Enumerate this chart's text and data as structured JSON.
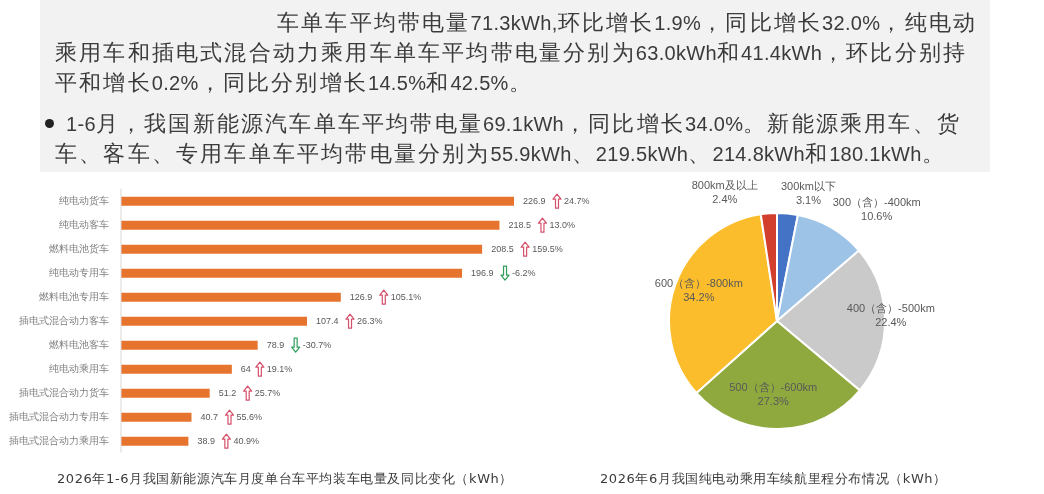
{
  "chart_data": [
    {
      "type": "other",
      "annotations": [
        "车单车平均带电量71.3kWh,环比增长1.9%，同比增长32.0%，纯电动乘用车和插电式混合动力乘用车单车平均带电量分别为63.0kWh和41.4kWh，环比分别持平和增长0.2%，同比分别增长14.5%和42.5%。",
        "1-6月，我国新能源汽车单车平均带电量69.1kWh，同比增长34.0%。新能源乘用车、货车、客车、专用车单车平均带电量分别为55.9kWh、219.5kWh、214.8kWh和180.1kWh。"
      ]
    },
    {
      "type": "bar",
      "orientation": "horizontal",
      "title": "2026年1-6月我国新能源汽车月度单台车平均装车电量及同比变化（kWh）",
      "categories": [
        "纯电动货车",
        "纯电动客车",
        "燃料电池货车",
        "纯电动专用车",
        "燃料电池专用车",
        "插电式混合动力客车",
        "燃料电池客车",
        "纯电动乘用车",
        "插电式混合动力货车",
        "插电式混合动力专用车",
        "插电式混合动力乘用车"
      ],
      "values": [
        226.9,
        218.5,
        208.5,
        196.9,
        126.9,
        107.4,
        78.9,
        64,
        51.2,
        40.7,
        38.9
      ],
      "color": "#e6732e",
      "tick_labels": "y",
      "data_labels": true,
      "annotations": [
        "24.7%",
        "13.0%",
        "159.5%",
        "-6.2%",
        "105.1%",
        "26.3%",
        "-30.7%",
        "19.1%",
        "25.7%",
        "55.6%",
        "40.9%"
      ]
    },
    {
      "type": "pie",
      "title": "2026年6月我国纯电动乘用车续航里程分布情况（kWh）",
      "categories": [
        "300km以下",
        "300（含）-400km",
        "400（含）-500km",
        "500（含）-600km",
        "600（含）-800km",
        "800km及以上"
      ],
      "values": [
        3.1,
        10.6,
        22.4,
        27.3,
        34.2,
        2.4
      ],
      "colors": [
        "#4472c4",
        "#9dc3e6",
        "#cacaca",
        "#8fa93f",
        "#fcbd2c",
        "#d23f2c"
      ],
      "value_labels": [
        "3.1%",
        "10.6%",
        "22.4%",
        "27.3%",
        "34.2%",
        "2.4%"
      ]
    }
  ]
}
